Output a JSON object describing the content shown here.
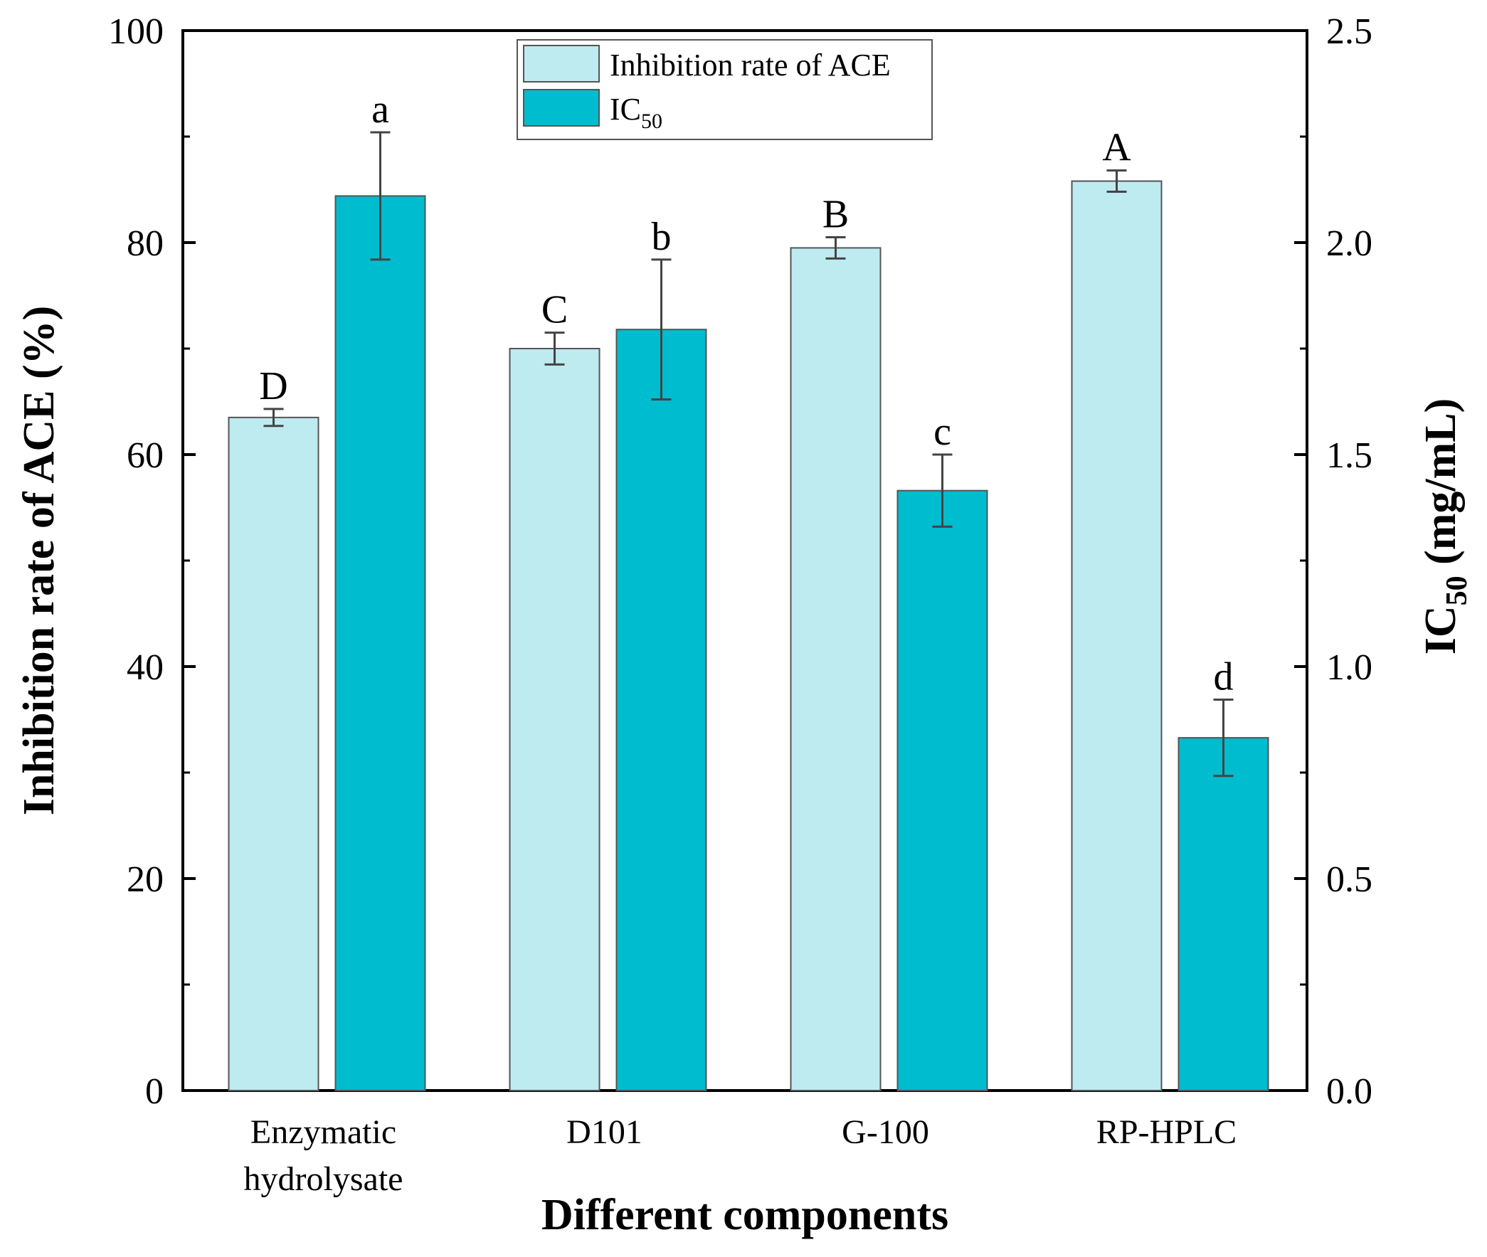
{
  "chart_data": {
    "type": "bar",
    "title": "",
    "xlabel": "Different components",
    "ylabel_left": "Inhibition rate of ACE (%)",
    "ylabel_right": {
      "main": "IC",
      "sub": "50",
      "rest": " (mg/mL)"
    },
    "categories": [
      {
        "line1": "Enzymatic",
        "line2": "hydrolysate"
      },
      {
        "line1": "D101",
        "line2": ""
      },
      {
        "line1": "G-100",
        "line2": ""
      },
      {
        "line1": "RP-HPLC",
        "line2": ""
      }
    ],
    "ylim_left": [
      0,
      100
    ],
    "ylim_right": [
      0,
      2.5
    ],
    "left_ticks": [
      "0",
      "20",
      "40",
      "60",
      "80",
      "100"
    ],
    "right_ticks": [
      "0.0",
      "0.5",
      "1.0",
      "1.5",
      "2.0",
      "2.5"
    ],
    "series": [
      {
        "name": "Inhibition rate of ACE",
        "axis": "left",
        "color": "#bdebf0",
        "values": [
          63.5,
          70.0,
          79.5,
          85.8
        ],
        "errors": [
          0.8,
          1.5,
          1.0,
          1.0
        ],
        "labels": [
          "D",
          "C",
          "B",
          "A"
        ]
      },
      {
        "name": "IC",
        "name_sub": "50",
        "axis": "right",
        "color": "#00bccf",
        "values": [
          2.11,
          1.795,
          1.415,
          0.832
        ],
        "errors": [
          0.15,
          0.165,
          0.085,
          0.09
        ],
        "labels": [
          "a",
          "b",
          "c",
          "d"
        ]
      }
    ],
    "legend": {
      "position": "top-center"
    }
  }
}
